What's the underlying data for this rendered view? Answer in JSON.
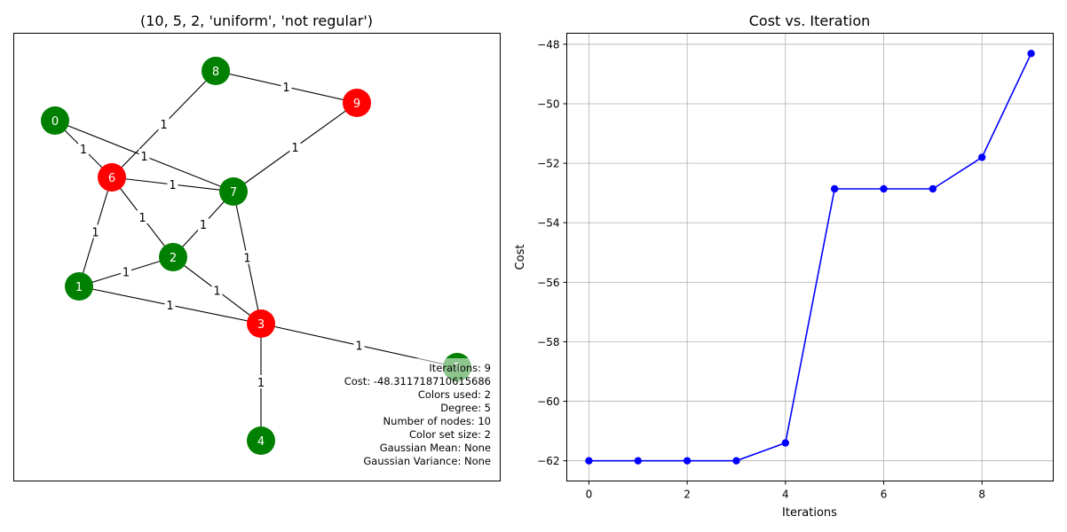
{
  "figure": {
    "graph_panel": {
      "title": "(10, 5, 2, 'uniform', 'not regular')",
      "node_colors": {
        "green": "#008000",
        "red": "#ff0000"
      },
      "nodes": [
        {
          "id": "0",
          "color": "green"
        },
        {
          "id": "1",
          "color": "green"
        },
        {
          "id": "2",
          "color": "green"
        },
        {
          "id": "3",
          "color": "red"
        },
        {
          "id": "4",
          "color": "green"
        },
        {
          "id": "5",
          "color": "green"
        },
        {
          "id": "6",
          "color": "red"
        },
        {
          "id": "7",
          "color": "green"
        },
        {
          "id": "8",
          "color": "green"
        },
        {
          "id": "9",
          "color": "red"
        }
      ],
      "edges": [
        {
          "source": "8",
          "target": "9",
          "weight": "1"
        },
        {
          "source": "8",
          "target": "6",
          "weight": "1"
        },
        {
          "source": "9",
          "target": "7",
          "weight": "1"
        },
        {
          "source": "0",
          "target": "6",
          "weight": "1"
        },
        {
          "source": "0",
          "target": "7",
          "weight": "1"
        },
        {
          "source": "6",
          "target": "7",
          "weight": "1"
        },
        {
          "source": "6",
          "target": "2",
          "weight": "1"
        },
        {
          "source": "6",
          "target": "1",
          "weight": "1"
        },
        {
          "source": "7",
          "target": "2",
          "weight": "1"
        },
        {
          "source": "7",
          "target": "3",
          "weight": "1"
        },
        {
          "source": "2",
          "target": "1",
          "weight": "1"
        },
        {
          "source": "2",
          "target": "3",
          "weight": "1"
        },
        {
          "source": "1",
          "target": "3",
          "weight": "1"
        },
        {
          "source": "3",
          "target": "5",
          "weight": "1"
        },
        {
          "source": "3",
          "target": "4",
          "weight": "1"
        }
      ],
      "info_lines": [
        "Iterations: 9",
        "Cost: -48.311718710615686",
        "Colors used: 2",
        "Degree: 5",
        "Number of nodes: 10",
        "Color set size: 2",
        "Gaussian Mean: None",
        "Gaussian Variance: None"
      ]
    }
  },
  "chart_data": {
    "type": "line",
    "title": "Cost vs. Iteration",
    "xlabel": "Iterations",
    "ylabel": "Cost",
    "xlim": [
      -0.45,
      9.45
    ],
    "ylim": [
      -62.68,
      -47.63
    ],
    "xticks": [
      0,
      2,
      4,
      6,
      8
    ],
    "yticks": [
      -62,
      -60,
      -58,
      -56,
      -54,
      -52,
      -50,
      -48
    ],
    "grid": true,
    "line_color": "#0000ff",
    "marker": "circle",
    "x": [
      0,
      1,
      2,
      3,
      4,
      5,
      6,
      7,
      8,
      9
    ],
    "y": [
      -62.0,
      -62.0,
      -62.0,
      -62.0,
      -61.4,
      -52.86,
      -52.86,
      -52.86,
      -51.8,
      -48.31
    ]
  }
}
